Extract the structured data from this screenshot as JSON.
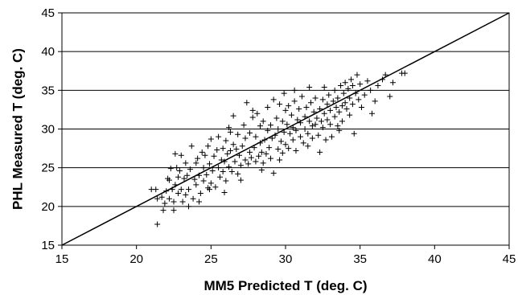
{
  "chart_data": {
    "type": "scatter",
    "title": "",
    "xlabel": "MM5 Predicted T (deg. C)",
    "ylabel": "PHL Measured T (deg. C)",
    "xlim": [
      15,
      45
    ],
    "ylim": [
      15,
      45
    ],
    "xticks": [
      15,
      20,
      25,
      30,
      35,
      40,
      45
    ],
    "yticks": [
      15,
      20,
      25,
      30,
      35,
      40,
      45
    ],
    "grid": "horizontal",
    "marker": "+",
    "marker_color": "#000000",
    "reference_line": {
      "from": [
        15,
        15
      ],
      "to": [
        45,
        45
      ],
      "label": ""
    },
    "series": [
      {
        "name": "",
        "points": [
          [
            21.0,
            22.2
          ],
          [
            21.3,
            22.2
          ],
          [
            21.4,
            21.0
          ],
          [
            21.4,
            17.7
          ],
          [
            21.7,
            21.2
          ],
          [
            21.8,
            19.5
          ],
          [
            21.9,
            20.4
          ],
          [
            22.0,
            22.0
          ],
          [
            22.1,
            23.6
          ],
          [
            22.2,
            21.0
          ],
          [
            22.2,
            23.4
          ],
          [
            22.3,
            24.9
          ],
          [
            22.4,
            22.2
          ],
          [
            22.5,
            20.6
          ],
          [
            22.5,
            19.5
          ],
          [
            22.6,
            22.8
          ],
          [
            22.7,
            25.0
          ],
          [
            22.8,
            21.7
          ],
          [
            22.8,
            23.8
          ],
          [
            22.9,
            24.6
          ],
          [
            23.0,
            22.2
          ],
          [
            23.1,
            20.6
          ],
          [
            23.2,
            23.6
          ],
          [
            23.3,
            21.5
          ],
          [
            23.3,
            25.6
          ],
          [
            23.4,
            24.0
          ],
          [
            23.5,
            22.2
          ],
          [
            23.5,
            20.0
          ],
          [
            23.6,
            24.8
          ],
          [
            23.7,
            27.8
          ],
          [
            23.8,
            21.0
          ],
          [
            23.9,
            23.5
          ],
          [
            24.0,
            25.6
          ],
          [
            24.0,
            22.8
          ],
          [
            24.1,
            26.2
          ],
          [
            24.2,
            24.0
          ],
          [
            24.3,
            21.7
          ],
          [
            24.4,
            27.0
          ],
          [
            24.5,
            23.3
          ],
          [
            24.5,
            25.0
          ],
          [
            24.6,
            26.6
          ],
          [
            24.7,
            24.1
          ],
          [
            24.8,
            22.4
          ],
          [
            24.8,
            27.8
          ],
          [
            24.9,
            25.5
          ],
          [
            25.0,
            23.0
          ],
          [
            25.0,
            28.7
          ],
          [
            25.1,
            24.6
          ],
          [
            25.2,
            26.5
          ],
          [
            25.3,
            22.5
          ],
          [
            25.4,
            27.3
          ],
          [
            25.5,
            25.0
          ],
          [
            25.5,
            29.0
          ],
          [
            25.6,
            23.8
          ],
          [
            25.7,
            26.0
          ],
          [
            25.8,
            27.5
          ],
          [
            25.8,
            24.5
          ],
          [
            25.9,
            25.8
          ],
          [
            26.0,
            28.5
          ],
          [
            26.0,
            23.3
          ],
          [
            26.1,
            26.8
          ],
          [
            26.2,
            25.1
          ],
          [
            26.2,
            30.2
          ],
          [
            26.3,
            27.2
          ],
          [
            26.4,
            24.5
          ],
          [
            26.5,
            31.7
          ],
          [
            26.5,
            28.0
          ],
          [
            26.6,
            25.8
          ],
          [
            26.7,
            27.4
          ],
          [
            26.8,
            24.2
          ],
          [
            26.8,
            29.3
          ],
          [
            26.9,
            26.6
          ],
          [
            27.0,
            25.3
          ],
          [
            27.1,
            27.8
          ],
          [
            27.2,
            30.5
          ],
          [
            27.3,
            26.0
          ],
          [
            27.3,
            28.8
          ],
          [
            27.4,
            33.4
          ],
          [
            27.5,
            25.5
          ],
          [
            27.6,
            27.0
          ],
          [
            27.6,
            29.5
          ],
          [
            27.7,
            26.3
          ],
          [
            27.8,
            31.5
          ],
          [
            27.9,
            27.6
          ],
          [
            28.0,
            25.8
          ],
          [
            28.0,
            29.0
          ],
          [
            28.1,
            32.0
          ],
          [
            28.2,
            26.5
          ],
          [
            28.3,
            28.2
          ],
          [
            28.3,
            30.4
          ],
          [
            28.4,
            27.0
          ],
          [
            28.5,
            25.6
          ],
          [
            28.5,
            31.0
          ],
          [
            28.6,
            28.6
          ],
          [
            28.7,
            26.8
          ],
          [
            28.8,
            29.8
          ],
          [
            28.8,
            32.8
          ],
          [
            28.9,
            27.6
          ],
          [
            29.0,
            30.5
          ],
          [
            29.0,
            26.2
          ],
          [
            29.1,
            28.8
          ],
          [
            29.2,
            33.8
          ],
          [
            29.2,
            24.3
          ],
          [
            29.3,
            29.2
          ],
          [
            29.4,
            31.4
          ],
          [
            29.5,
            27.4
          ],
          [
            29.5,
            30.0
          ],
          [
            29.6,
            33.2
          ],
          [
            29.7,
            28.4
          ],
          [
            29.8,
            31.0
          ],
          [
            29.8,
            26.9
          ],
          [
            29.9,
            29.6
          ],
          [
            30.0,
            32.4
          ],
          [
            30.0,
            28.0
          ],
          [
            30.1,
            30.6
          ],
          [
            30.2,
            27.5
          ],
          [
            30.2,
            33.0
          ],
          [
            30.3,
            29.4
          ],
          [
            30.4,
            31.8
          ],
          [
            30.5,
            28.6
          ],
          [
            30.5,
            30.2
          ],
          [
            30.6,
            33.6
          ],
          [
            30.7,
            29.8
          ],
          [
            30.7,
            27.2
          ],
          [
            30.8,
            31.2
          ],
          [
            30.9,
            32.6
          ],
          [
            31.0,
            29.0
          ],
          [
            31.0,
            30.8
          ],
          [
            31.1,
            34.2
          ],
          [
            31.2,
            28.2
          ],
          [
            31.3,
            31.6
          ],
          [
            31.3,
            30.0
          ],
          [
            31.4,
            32.8
          ],
          [
            31.5,
            29.4
          ],
          [
            31.5,
            27.8
          ],
          [
            31.6,
            31.0
          ],
          [
            31.7,
            33.4
          ],
          [
            31.8,
            30.4
          ],
          [
            31.8,
            28.8
          ],
          [
            31.9,
            32.2
          ],
          [
            32.0,
            30.6
          ],
          [
            32.0,
            34.0
          ],
          [
            32.1,
            31.4
          ],
          [
            32.2,
            29.2
          ],
          [
            32.3,
            32.6
          ],
          [
            32.3,
            27.0
          ],
          [
            32.4,
            31.0
          ],
          [
            32.5,
            33.8
          ],
          [
            32.5,
            30.2
          ],
          [
            32.6,
            32.0
          ],
          [
            32.7,
            28.6
          ],
          [
            32.8,
            33.2
          ],
          [
            32.8,
            31.2
          ],
          [
            32.9,
            34.4
          ],
          [
            33.0,
            30.6
          ],
          [
            33.0,
            32.4
          ],
          [
            33.1,
            29.0
          ],
          [
            33.2,
            33.6
          ],
          [
            33.3,
            31.6
          ],
          [
            33.3,
            35.0
          ],
          [
            33.4,
            32.8
          ],
          [
            33.5,
            30.4
          ],
          [
            33.5,
            34.0
          ],
          [
            33.6,
            32.2
          ],
          [
            33.7,
            35.6
          ],
          [
            33.8,
            33.0
          ],
          [
            33.8,
            31.0
          ],
          [
            33.9,
            34.6
          ],
          [
            34.0,
            33.4
          ],
          [
            34.0,
            36.0
          ],
          [
            34.1,
            32.6
          ],
          [
            34.2,
            35.2
          ],
          [
            34.3,
            34.0
          ],
          [
            34.3,
            31.8
          ],
          [
            34.4,
            36.4
          ],
          [
            34.5,
            33.2
          ],
          [
            34.5,
            35.6
          ],
          [
            34.6,
            29.4
          ],
          [
            34.7,
            34.6
          ],
          [
            34.8,
            37.0
          ],
          [
            34.9,
            33.8
          ],
          [
            35.0,
            35.8
          ],
          [
            35.1,
            32.8
          ],
          [
            35.3,
            34.4
          ],
          [
            35.5,
            36.2
          ],
          [
            35.7,
            35.0
          ],
          [
            36.0,
            33.6
          ],
          [
            36.2,
            35.6
          ],
          [
            36.5,
            36.4
          ],
          [
            36.7,
            37.0
          ],
          [
            37.0,
            34.2
          ],
          [
            37.2,
            36.0
          ],
          [
            37.8,
            37.2
          ],
          [
            38.0,
            37.2
          ],
          [
            23.0,
            26.6
          ],
          [
            24.2,
            20.6
          ],
          [
            25.9,
            21.8
          ],
          [
            27.0,
            23.4
          ],
          [
            28.4,
            24.7
          ],
          [
            30.6,
            35.0
          ],
          [
            31.6,
            35.4
          ],
          [
            29.6,
            26.0
          ],
          [
            26.3,
            29.6
          ],
          [
            24.9,
            22.2
          ],
          [
            22.6,
            26.8
          ],
          [
            33.6,
            29.8
          ],
          [
            35.8,
            32.0
          ],
          [
            32.6,
            35.4
          ],
          [
            27.8,
            32.4
          ],
          [
            29.9,
            34.6
          ]
        ]
      }
    ]
  }
}
